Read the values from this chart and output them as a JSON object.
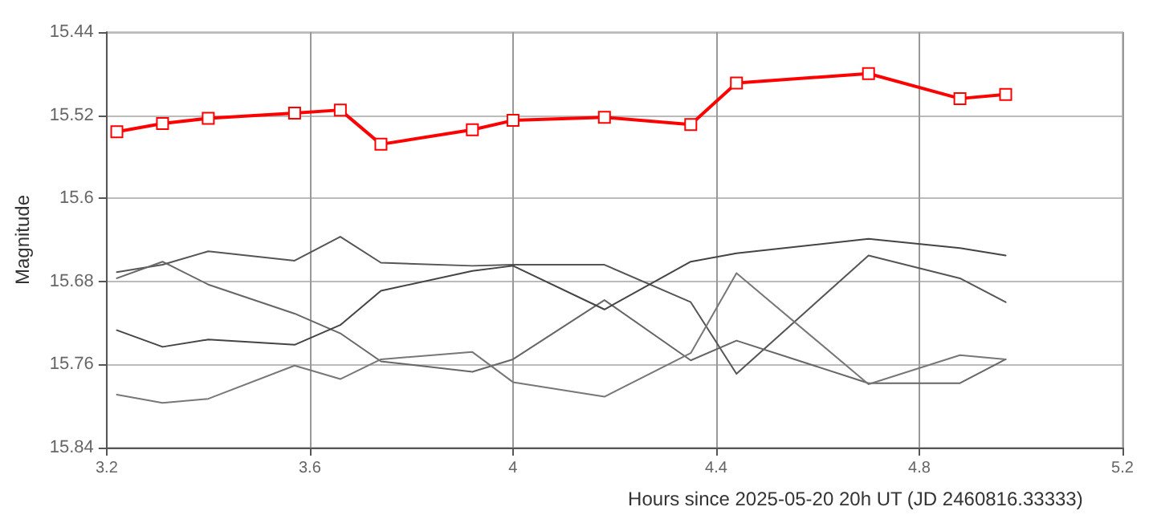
{
  "chart_data": {
    "type": "line",
    "xlabel": "Hours since 2025-05-20 20h UT (JD 2460816.33333)",
    "ylabel": "Magnitude",
    "x": [
      3.22,
      3.31,
      3.4,
      3.57,
      3.66,
      3.74,
      3.92,
      4.0,
      4.18,
      4.35,
      4.44,
      4.7,
      4.88,
      4.97
    ],
    "series": [
      {
        "color": "#ff0000",
        "marker": "square",
        "values": [
          15.536,
          15.528,
          15.523,
          15.518,
          15.515,
          15.548,
          15.534,
          15.525,
          15.522,
          15.529,
          15.489,
          15.48,
          15.504,
          15.5
        ]
      },
      {
        "color": "#555555",
        "marker": "none",
        "values": [
          15.671,
          15.664,
          15.651,
          15.66,
          15.637,
          15.662,
          15.665,
          15.664,
          15.664,
          15.7,
          15.769,
          15.655,
          15.677,
          15.7
        ]
      },
      {
        "color": "#666666",
        "marker": "none",
        "values": [
          15.677,
          15.661,
          15.683,
          15.711,
          15.73,
          15.757,
          15.767,
          15.755,
          15.698,
          15.756,
          15.737,
          15.778,
          15.778,
          15.755
        ]
      },
      {
        "color": "#444444",
        "marker": "none",
        "values": [
          15.727,
          15.743,
          15.736,
          15.741,
          15.722,
          15.689,
          15.67,
          15.665,
          15.707,
          15.661,
          15.653,
          15.639,
          15.648,
          15.655
        ]
      },
      {
        "color": "#777777",
        "marker": "none",
        "values": [
          15.789,
          15.797,
          15.793,
          15.761,
          15.774,
          15.755,
          15.748,
          15.777,
          15.791,
          15.749,
          15.672,
          15.779,
          15.751,
          15.755
        ]
      }
    ],
    "xlim": [
      3.2,
      5.2
    ],
    "xticks": [
      3.2,
      3.6,
      4,
      4.4,
      4.8,
      5.2
    ],
    "ylim": [
      15.84,
      15.44
    ],
    "yticks": [
      15.44,
      15.52,
      15.6,
      15.68,
      15.76,
      15.84
    ],
    "grid": true,
    "line_style": "solid"
  }
}
